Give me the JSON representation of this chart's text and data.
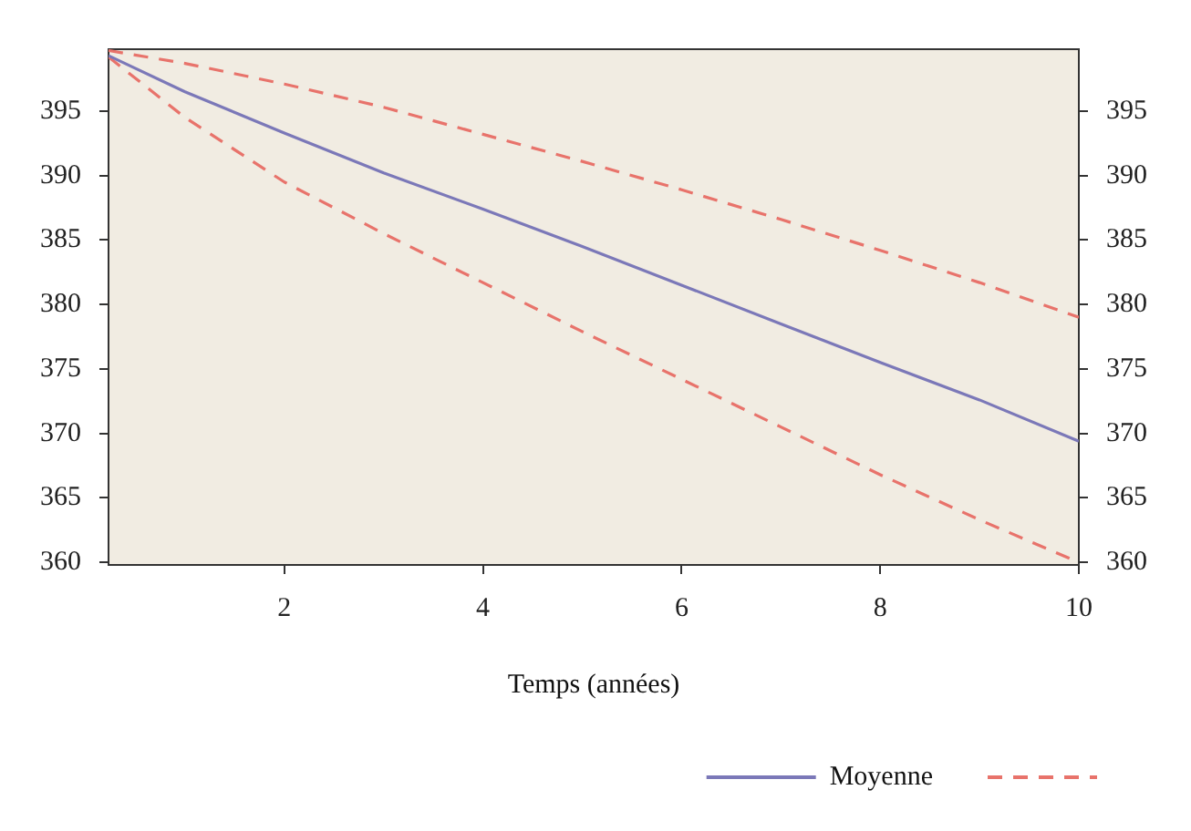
{
  "chart_data": {
    "type": "line",
    "xlabel": "Temps (années)",
    "x": [
      0.23,
      1,
      2,
      3,
      4,
      5,
      6,
      7,
      8,
      9,
      10
    ],
    "series": [
      {
        "name": "Moyenne",
        "color": "#7b78b8",
        "line_style": "solid",
        "values": [
          399.3,
          396.5,
          393.3,
          390.2,
          387.4,
          384.5,
          381.5,
          378.5,
          375.5,
          372.6,
          369.4
        ]
      },
      {
        "color": "#e8736b",
        "line_style": "dashed",
        "values": [
          399.7,
          398.7,
          397.1,
          395.3,
          393.2,
          391.1,
          388.9,
          386.6,
          384.2,
          381.7,
          379.0
        ]
      },
      {
        "color": "#e8736b",
        "line_style": "dashed",
        "values": [
          399.2,
          394.5,
          389.5,
          385.5,
          381.7,
          377.9,
          374.2,
          370.5,
          366.8,
          363.3,
          360.0
        ]
      }
    ],
    "xlim": [
      0.23,
      10
    ],
    "xticks": [
      2,
      4,
      6,
      8,
      10
    ],
    "ylim": [
      359.8,
      399.8
    ],
    "yticks": [
      360,
      365,
      370,
      375,
      380,
      385,
      390,
      395
    ],
    "y2lim": [
      359.8,
      399.8
    ],
    "y2ticks": [
      360,
      365,
      370,
      375,
      380,
      385,
      390,
      395
    ],
    "grid": false,
    "legend": "bottom right",
    "marker": "none"
  }
}
